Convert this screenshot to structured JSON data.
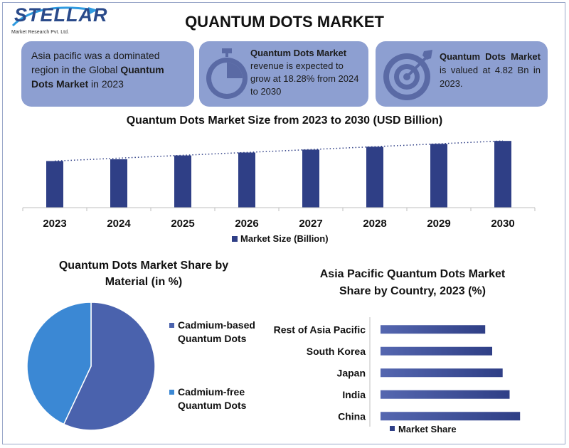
{
  "logo": {
    "word": "STELLAR",
    "sub": "Market Research Pvt. Ltd."
  },
  "page_title": "QUANTUM DOTS MARKET",
  "cards": [
    {
      "pre": "Asia pacific was a dominated region in the Global ",
      "bold": "Quantum Dots Market",
      "post": " in 2023",
      "icon": ""
    },
    {
      "bold": "Quantum Dots Market",
      "post": " revenue is expected to grow at 18.28% from 2024 to 2030",
      "icon": "stopwatch-icon"
    },
    {
      "bold": "Quantum Dots Market",
      "post": " is valued at 4.82 Bn in 2023.",
      "icon": "target-icon"
    }
  ],
  "colors": {
    "card": "#8d9fd1",
    "bar": "#2f3f86",
    "bar_light": "#5567b0",
    "pie_main": "#4a62ad",
    "pie_alt": "#3b88d4"
  },
  "chart_data": [
    {
      "type": "bar",
      "title": "Quantum Dots Market Size from 2023 to 2030 (USD Billion)",
      "categories": [
        "2023",
        "2024",
        "2025",
        "2026",
        "2027",
        "2028",
        "2029",
        "2030"
      ],
      "series": [
        {
          "name": "Market Size (Billion)",
          "values": [
            4.82,
            5.0,
            5.4,
            5.7,
            6.0,
            6.3,
            6.6,
            6.9
          ]
        }
      ],
      "trendline": "dotted-linear",
      "ylim": [
        0,
        7.5
      ],
      "legend": "bottom"
    },
    {
      "type": "pie",
      "title": "Quantum Dots Market Share by Material (in %)",
      "labels": [
        "Cadmium-based Quantum Dots",
        "Cadmium-free Quantum Dots"
      ],
      "values": [
        57,
        43
      ],
      "legend": "right"
    },
    {
      "type": "bar",
      "orientation": "horizontal",
      "title": "Asia Pacific Quantum Dots Market Share by Country, 2023 (%)",
      "categories": [
        "Rest of Asia Pacific",
        "South Korea",
        "Japan",
        "India",
        "China"
      ],
      "series": [
        {
          "name": "Market Share",
          "values": [
            14,
            15,
            16.5,
            17.5,
            19
          ]
        }
      ],
      "xlim": [
        0,
        25
      ],
      "legend": "bottom"
    }
  ]
}
